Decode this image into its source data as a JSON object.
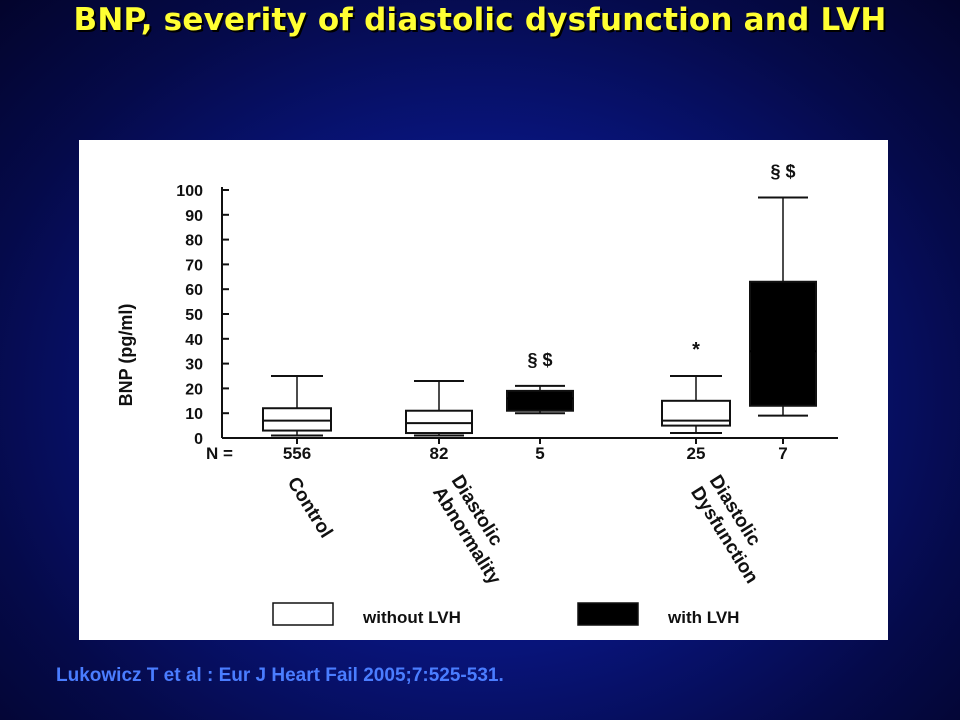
{
  "slide": {
    "title": "BNP, severity of diastolic  dysfunction and LVH",
    "citation": "Lukowicz T  et al : Eur J Heart Fail 2005;7:525-531.",
    "colors": {
      "background": "#06108a",
      "title": "#ffff33",
      "citation": "#4a7dff",
      "box_without_lvh": "#ffffff",
      "box_with_lvh": "#000000"
    }
  },
  "chart_data": {
    "type": "boxplot",
    "ylabel": "BNP (pg/ml)",
    "ylim": [
      0,
      100
    ],
    "yticks": [
      "0",
      "10",
      "20",
      "30",
      "40",
      "50",
      "60",
      "70",
      "80",
      "90",
      "100"
    ],
    "n_label": "N =",
    "groups": [
      {
        "label": "Control"
      },
      {
        "label": "Diastolic Abnormality"
      },
      {
        "label": "Diastolic Dysfunction"
      }
    ],
    "legend": {
      "items": [
        {
          "label": "without LVH",
          "fill": "#ffffff"
        },
        {
          "label": "with LVH",
          "fill": "#000000"
        }
      ],
      "placement": "bottom"
    },
    "boxes": [
      {
        "group": "Control",
        "series": "without LVH",
        "n": "556",
        "min": 1,
        "q1": 3,
        "median": 7,
        "q3": 12,
        "max": 25,
        "annotation": ""
      },
      {
        "group": "Diastolic Abnormality",
        "series": "without LVH",
        "n": "82",
        "min": 1,
        "q1": 2,
        "median": 6,
        "q3": 11,
        "max": 23,
        "annotation": ""
      },
      {
        "group": "Diastolic Abnormality",
        "series": "with LVH",
        "n": "5",
        "min": 10,
        "q1": 11,
        "median": 16,
        "q3": 19,
        "max": 21,
        "annotation": "§ $"
      },
      {
        "group": "Diastolic Dysfunction",
        "series": "without LVH",
        "n": "25",
        "min": 2,
        "q1": 5,
        "median": 7,
        "q3": 15,
        "max": 25,
        "annotation": "*"
      },
      {
        "group": "Diastolic Dysfunction",
        "series": "with LVH",
        "n": "7",
        "min": 9,
        "q1": 13,
        "median": 35,
        "q3": 63,
        "max": 97,
        "annotation": "§ $"
      }
    ]
  }
}
